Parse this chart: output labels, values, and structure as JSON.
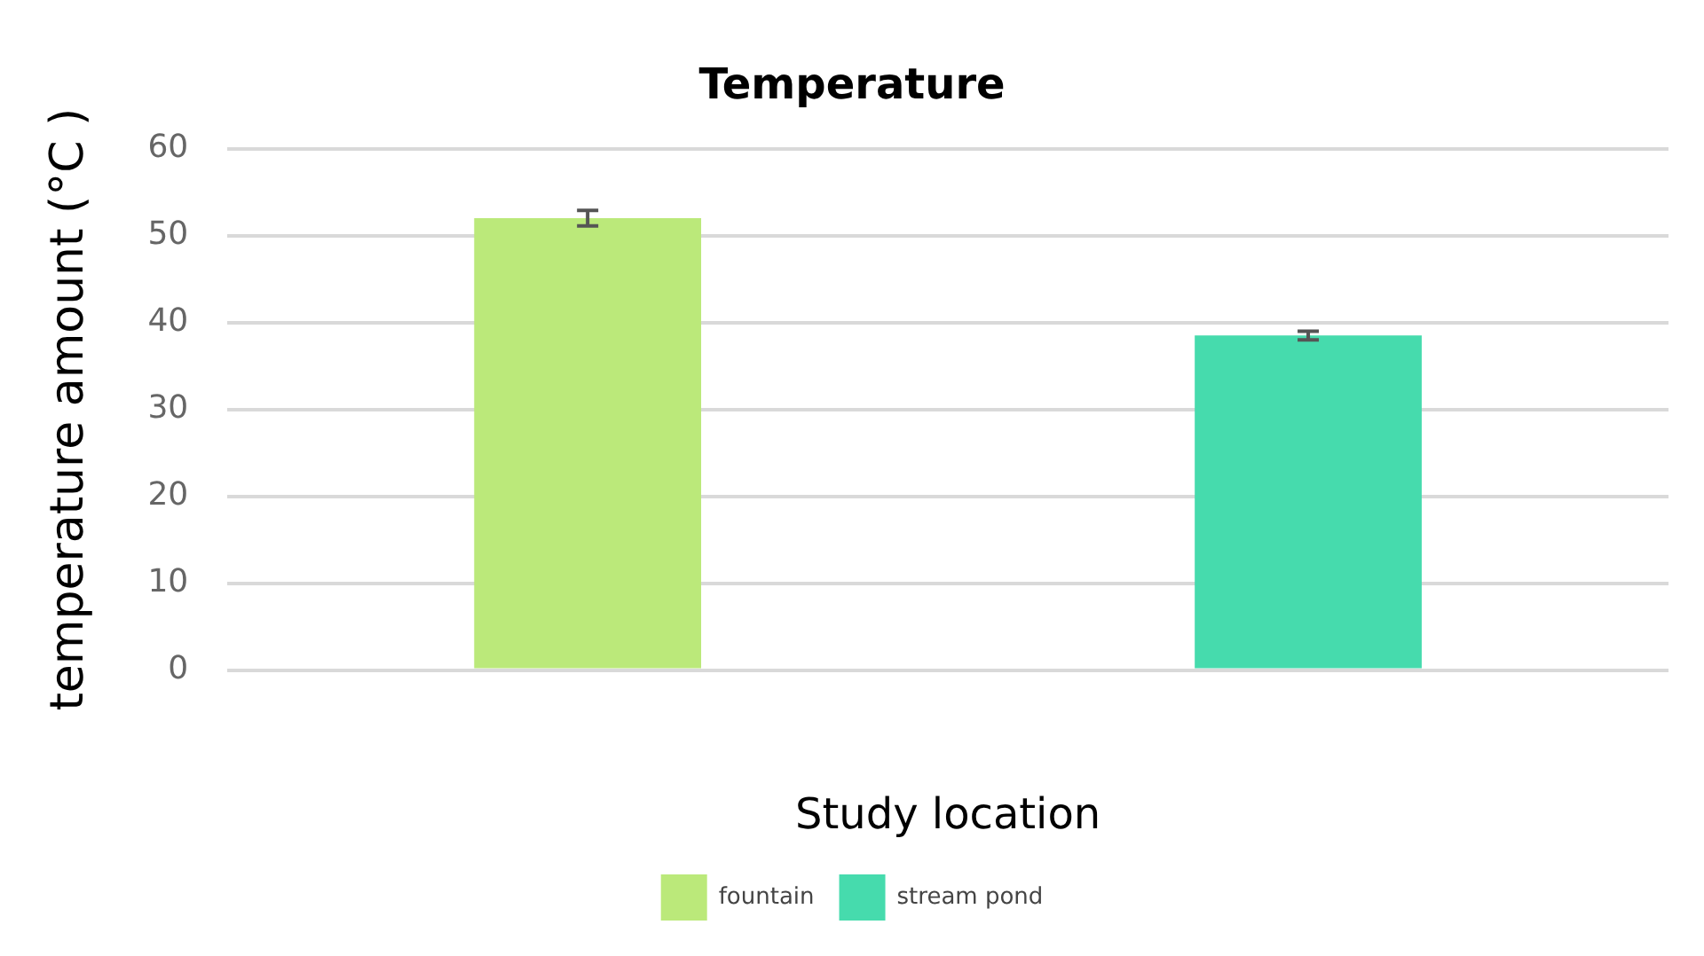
{
  "chart_data": {
    "type": "bar",
    "title": "Temperature",
    "xlabel": "Study location",
    "ylabel": "temperature amount (°C )",
    "categories": [
      null,
      null
    ],
    "series": [
      {
        "name": "fountain",
        "color": "#bbe97a",
        "values": [
          52,
          null
        ],
        "errors": [
          0.9,
          null
        ]
      },
      {
        "name": "stream pond",
        "color": "#46dbad",
        "values": [
          null,
          38.5
        ],
        "errors": [
          null,
          0.5
        ]
      }
    ],
    "ylim": [
      0,
      60
    ],
    "yticks": [
      0,
      10,
      20,
      30,
      40,
      50,
      60
    ],
    "grid": "y",
    "legend": "bottom"
  }
}
